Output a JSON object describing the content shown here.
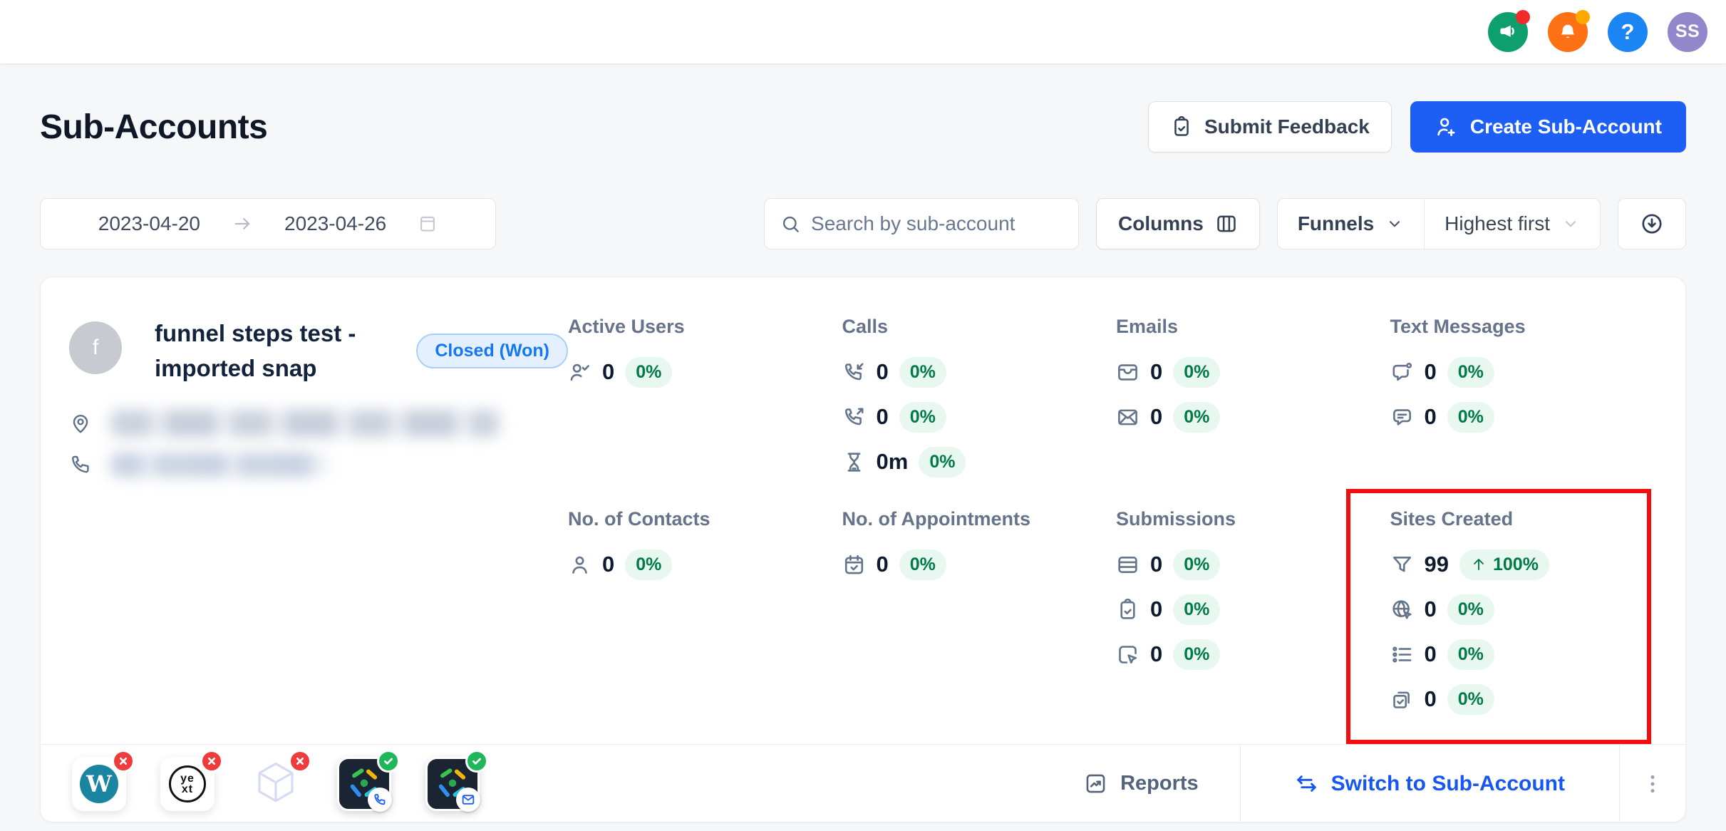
{
  "topbar": {
    "avatar_initials": "SS",
    "icons": [
      {
        "name": "announcements-icon",
        "badge": "red"
      },
      {
        "name": "notifications-bell-icon",
        "badge": "amber"
      },
      {
        "name": "help-icon"
      },
      {
        "name": "user-avatar"
      }
    ]
  },
  "header": {
    "title": "Sub-Accounts",
    "submit_feedback_label": "Submit Feedback",
    "create_subaccount_label": "Create Sub-Account"
  },
  "filters": {
    "date_start": "2023-04-20",
    "date_end": "2023-04-26",
    "search_placeholder": "Search by sub-account",
    "columns_label": "Columns",
    "funnels_label": "Funnels",
    "sort_label": "Highest first"
  },
  "card": {
    "avatar_letter": "f",
    "title": "funnel steps test - imported snap",
    "status_badge": "Closed (Won)",
    "metrics": [
      {
        "title": "Active Users",
        "items": [
          {
            "icon": "user-check-icon",
            "value": "0",
            "badge": "0%"
          }
        ]
      },
      {
        "title": "Calls",
        "items": [
          {
            "icon": "phone-incoming-icon",
            "value": "0",
            "badge": "0%"
          },
          {
            "icon": "phone-outgoing-icon",
            "value": "0",
            "badge": "0%"
          },
          {
            "icon": "hourglass-icon",
            "value": "0m",
            "badge": "0%"
          }
        ]
      },
      {
        "title": "Emails",
        "items": [
          {
            "icon": "inbox-icon",
            "value": "0",
            "badge": "0%"
          },
          {
            "icon": "envelope-icon",
            "value": "0",
            "badge": "0%"
          }
        ]
      },
      {
        "title": "Text Messages",
        "items": [
          {
            "icon": "message-dot-icon",
            "value": "0",
            "badge": "0%"
          },
          {
            "icon": "message-lines-icon",
            "value": "0",
            "badge": "0%"
          }
        ]
      },
      {
        "title": "No. of Contacts",
        "items": [
          {
            "icon": "user-icon",
            "value": "0",
            "badge": "0%"
          }
        ]
      },
      {
        "title": "No. of Appointments",
        "items": [
          {
            "icon": "calendar-check-icon",
            "value": "0",
            "badge": "0%"
          }
        ]
      },
      {
        "title": "Submissions",
        "items": [
          {
            "icon": "rows-icon",
            "value": "0",
            "badge": "0%"
          },
          {
            "icon": "clipboard-check-icon",
            "value": "0",
            "badge": "0%"
          },
          {
            "icon": "square-cursor-icon",
            "value": "0",
            "badge": "0%"
          }
        ]
      },
      {
        "title": "Sites Created",
        "highlighted": true,
        "items": [
          {
            "icon": "funnel-icon",
            "value": "99",
            "badge": "100%",
            "trend": "up"
          },
          {
            "icon": "globe-cursor-icon",
            "value": "0",
            "badge": "0%"
          },
          {
            "icon": "list-icon",
            "value": "0",
            "badge": "0%"
          },
          {
            "icon": "squares-check-icon",
            "value": "0",
            "badge": "0%"
          }
        ]
      }
    ],
    "footer": {
      "reports_label": "Reports",
      "switch_label": "Switch to Sub-Account",
      "apps": [
        {
          "name": "wordpress",
          "status": "error"
        },
        {
          "name": "yext",
          "status": "error"
        },
        {
          "name": "cube",
          "status": "error"
        },
        {
          "name": "app-phone",
          "status": "ok"
        },
        {
          "name": "app-email",
          "status": "ok"
        }
      ]
    }
  },
  "colors": {
    "primary_blue": "#1d5ef5",
    "link_blue": "#1656f2",
    "status_badge_blue": "#1677f2",
    "success_green_text": "#027a48",
    "success_green_bg": "#e8f7ef",
    "highlight_red": "#f30d0d",
    "announce_green": "#0e9f6e",
    "notification_orange": "#fd7014",
    "help_blue": "#1b85f3",
    "avatar_purple": "#9187cb"
  }
}
